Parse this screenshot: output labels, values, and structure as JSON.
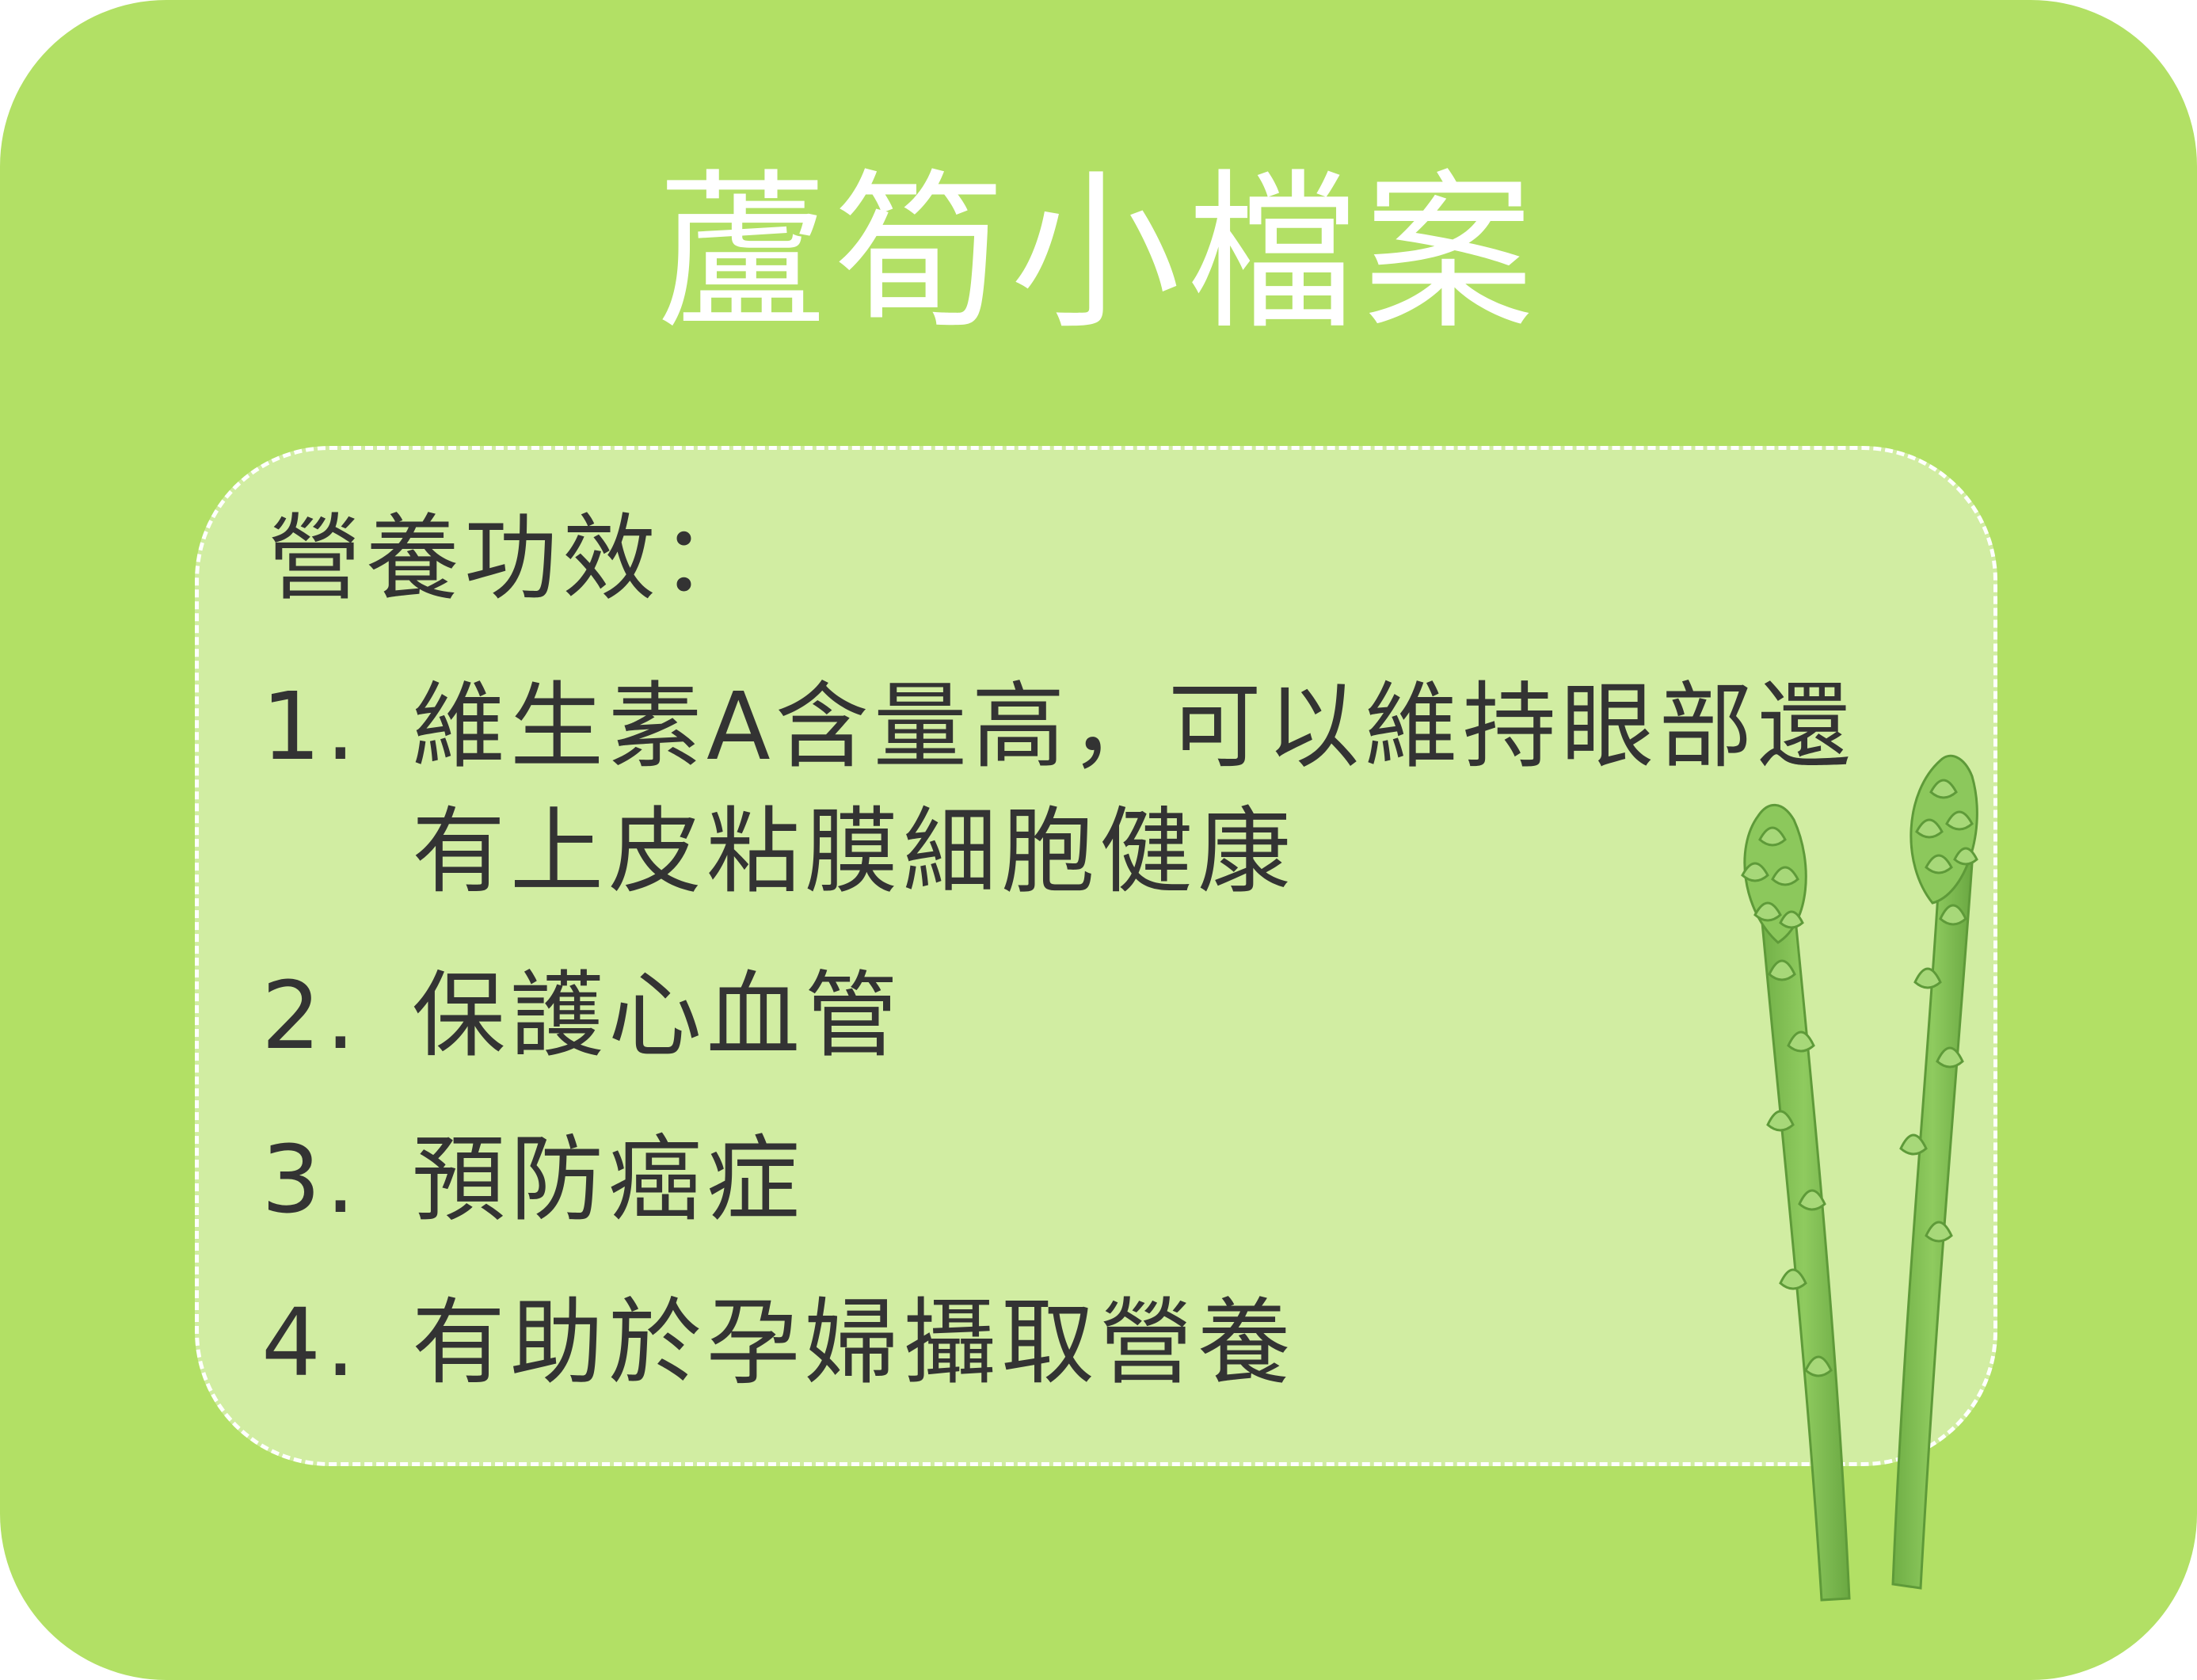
{
  "title": "蘆筍小檔案",
  "section_heading": "營養功效：",
  "items": [
    {
      "num": "1.",
      "text": "維生素A含量高，可以維持眼部還\n有上皮粘膜細胞健康"
    },
    {
      "num": "2.",
      "text": "保護心血管"
    },
    {
      "num": "3.",
      "text": "預防癌症"
    },
    {
      "num": "4.",
      "text": "有助於孕婦攝取營養"
    }
  ],
  "colors": {
    "background": "#b2e065",
    "panel": "#d1eda2",
    "text": "#333333",
    "title": "#ffffff",
    "asparagus": "#7dbb4f"
  },
  "icons": {
    "illustration": "asparagus-icon"
  }
}
